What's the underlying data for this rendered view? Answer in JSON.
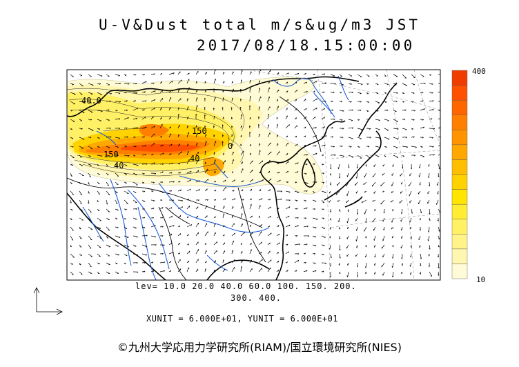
{
  "title": {
    "line1": "U-V&Dust total m/s&ug/m3 JST",
    "line2": "2017/08/18.15:00:00"
  },
  "legend": {
    "lev_line1": "lev= 10.0 20.0 40.0 60.0 100. 150. 200.",
    "lev_line2": "300. 400.",
    "units": "XUNIT = 6.000E+01, YUNIT = 6.000E+01"
  },
  "colorbar": {
    "max_label": "400",
    "min_label": "10",
    "colors": [
      "#fffbd6",
      "#fff6b0",
      "#fff38a",
      "#fff066",
      "#ffec33",
      "#ffe500",
      "#ffd200",
      "#ffbf00",
      "#ffa800",
      "#ff9400",
      "#ff7f00",
      "#ff6600",
      "#ff5000",
      "#f03c00"
    ]
  },
  "contour_labels": [
    {
      "text": "40.0"
    },
    {
      "text": "150"
    },
    {
      "text": "150"
    },
    {
      "text": "40"
    },
    {
      "text": "40"
    },
    {
      "text": "0"
    }
  ],
  "copyright": "©九州大学応用力学研究所(RIAM)/国立環境研究所(NIES)",
  "colors": {
    "coast": "#000000",
    "river": "#1f5fd8",
    "grid": "#999999",
    "frame": "#000000"
  }
}
